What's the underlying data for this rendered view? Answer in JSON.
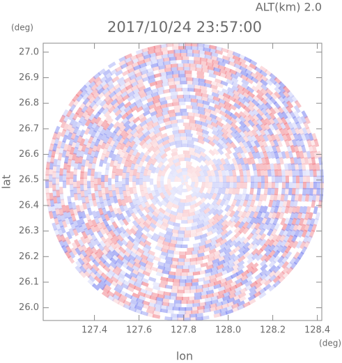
{
  "chart_data": {
    "type": "radar",
    "title": "2017/10/24 23:57:00",
    "subtitle": "ALT(km) 2.0",
    "x_label": "lon",
    "y_label": "lat",
    "x_unit": "(deg)",
    "y_unit": "(deg)",
    "xlim": [
      127.17,
      128.42
    ],
    "ylim": [
      25.95,
      27.035
    ],
    "xticks": [
      127.4,
      127.6,
      127.8,
      {
        "value": 128,
        "label": "128.0"
      },
      128.2,
      128.4
    ],
    "yticks": [
      {
        "value": 26,
        "label": "26.0"
      },
      26.1,
      26.2,
      26.3,
      26.4,
      26.5,
      26.6,
      26.7,
      26.8,
      26.9,
      {
        "value": 27,
        "label": "27.0"
      }
    ]
  }
}
